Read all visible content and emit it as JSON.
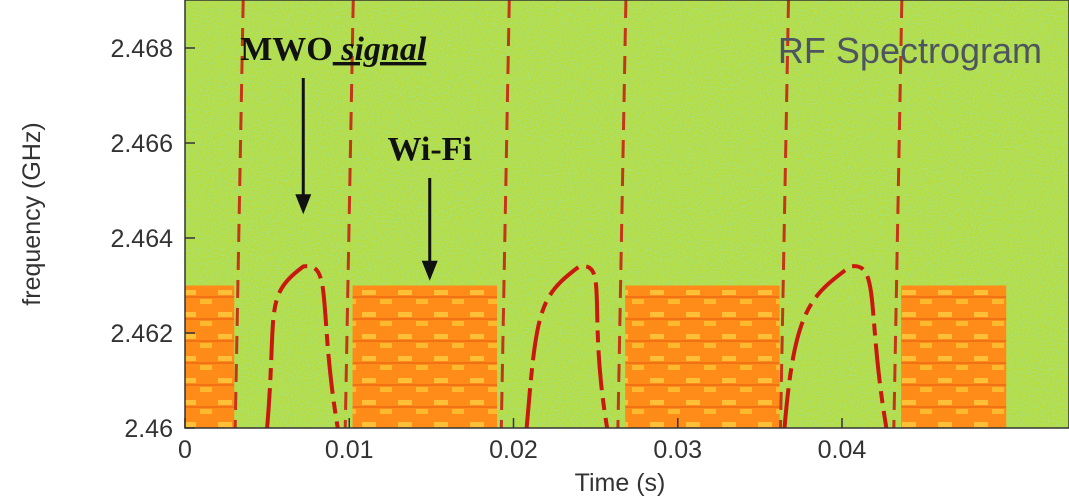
{
  "chart_data": {
    "type": "heatmap",
    "title": "RF Spectrogram",
    "xlabel": "Time (s)",
    "ylabel": "frequency (GHz)",
    "xlim": [
      0,
      0.05
    ],
    "ylim": [
      2.46,
      2.4688
    ],
    "x_ticks": [
      0,
      0.01,
      0.02,
      0.03,
      0.04
    ],
    "x_tick_labels": [
      "0",
      "0.01",
      "0.02",
      "0.03",
      "0.04"
    ],
    "y_ticks": [
      2.46,
      2.462,
      2.464,
      2.466,
      2.468
    ],
    "y_tick_labels": [
      "2.46",
      "2.462",
      "2.464",
      "2.466",
      "2.468"
    ],
    "annotations": [
      {
        "text_main": "MWO",
        "text_italic": "signal",
        "arrow_x": 0.0072,
        "arrow_y": 2.4645
      },
      {
        "text_main": "Wi-Fi",
        "text_italic": "",
        "arrow_x": 0.0149,
        "arrow_y": 2.4631
      }
    ],
    "mwo_arcs": [
      {
        "start": 0.0035,
        "end": 0.0098,
        "peak_x": 0.0072,
        "peak_y": 2.4634
      },
      {
        "start": 0.0193,
        "end": 0.0262,
        "peak_x": 0.024,
        "peak_y": 2.4634
      },
      {
        "start": 0.035,
        "end": 0.0432,
        "peak_x": 0.0405,
        "peak_y": 2.4634
      }
    ],
    "mwo_vertical_lines": [
      0.0033,
      0.01,
      0.0195,
      0.0266,
      0.0365,
      0.0434
    ],
    "wifi_bursts": [
      {
        "start": 0.0,
        "end": 0.003,
        "top": 2.463
      },
      {
        "start": 0.0102,
        "end": 0.019,
        "top": 2.463
      },
      {
        "start": 0.0268,
        "end": 0.0362,
        "top": 2.463
      },
      {
        "start": 0.0436,
        "end": 0.05,
        "top": 2.463
      }
    ],
    "colors": {
      "background_noise": "#b5dc3a",
      "wifi_band": "#ff9020",
      "signal_line": "#c81810",
      "title": "#4e5560"
    }
  }
}
